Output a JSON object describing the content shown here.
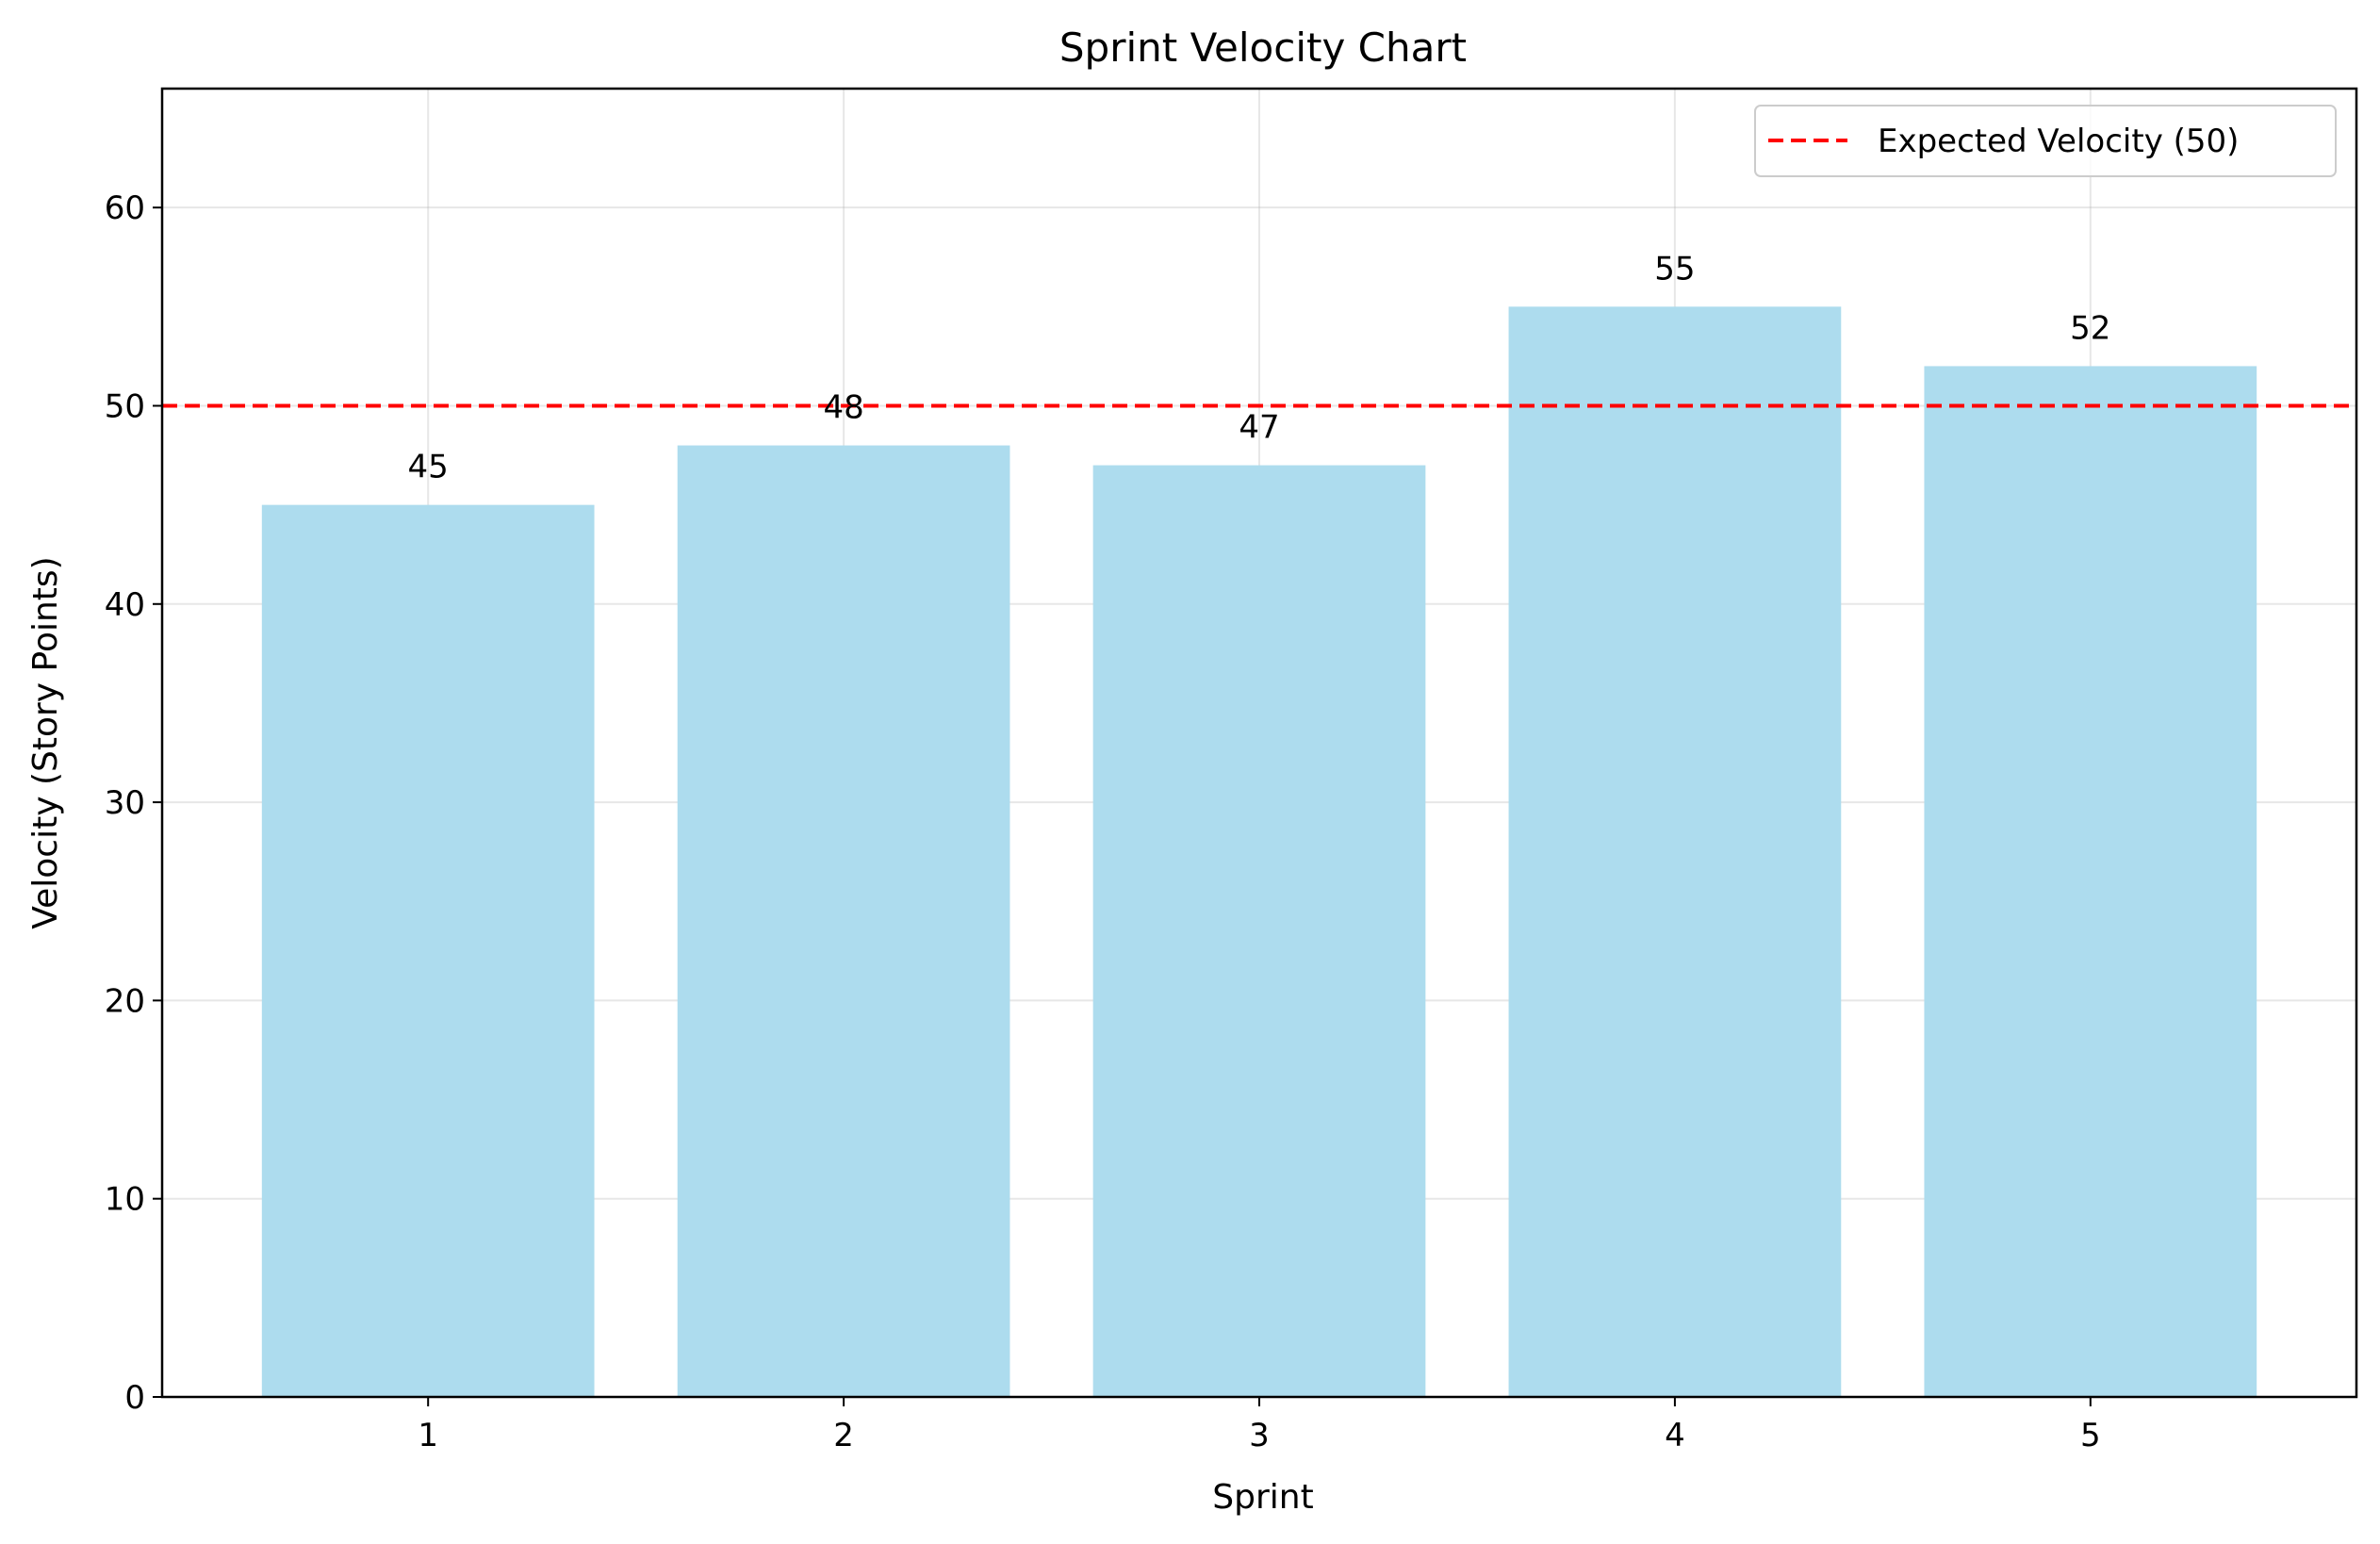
{
  "chart_data": {
    "type": "bar",
    "title": "Sprint Velocity Chart",
    "xlabel": "Sprint",
    "ylabel": "Velocity (Story Points)",
    "categories": [
      "1",
      "2",
      "3",
      "4",
      "5"
    ],
    "values": [
      45,
      48,
      47,
      55,
      52
    ],
    "ylim": [
      0,
      66
    ],
    "yticks": [
      0,
      10,
      20,
      30,
      40,
      50,
      60
    ],
    "bar_color": "#ADDCEE",
    "grid": true,
    "reference_line": {
      "value": 50,
      "label": "Expected Velocity (50)",
      "color": "#FF0000",
      "style": "dashed"
    },
    "legend": {
      "position": "top-right",
      "entries": [
        "Expected Velocity (50)"
      ]
    }
  }
}
